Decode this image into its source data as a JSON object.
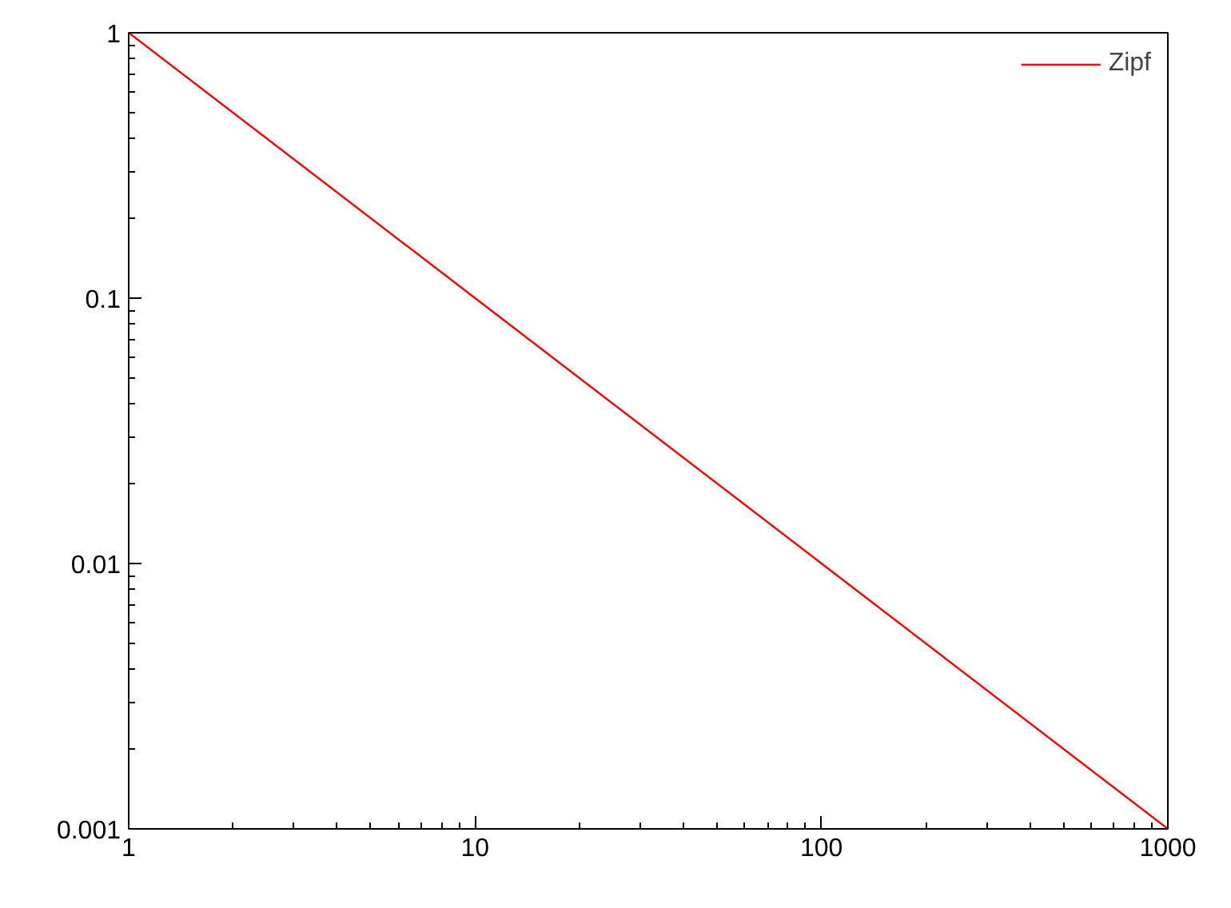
{
  "chart_data": {
    "type": "line",
    "log": "xy",
    "x": [
      1,
      10,
      100,
      1000
    ],
    "series": [
      {
        "name": "Zipf",
        "color": "#ff0000",
        "values": [
          1,
          0.1,
          0.01,
          0.001
        ]
      }
    ],
    "xlim": [
      1,
      1000
    ],
    "ylim": [
      0.001,
      1
    ],
    "xticks": [
      1,
      10,
      100,
      1000
    ],
    "yticks": [
      0.001,
      0.01,
      0.1,
      1
    ],
    "grid": false,
    "legend": "top right",
    "marker": "none",
    "line_style": "solid"
  }
}
